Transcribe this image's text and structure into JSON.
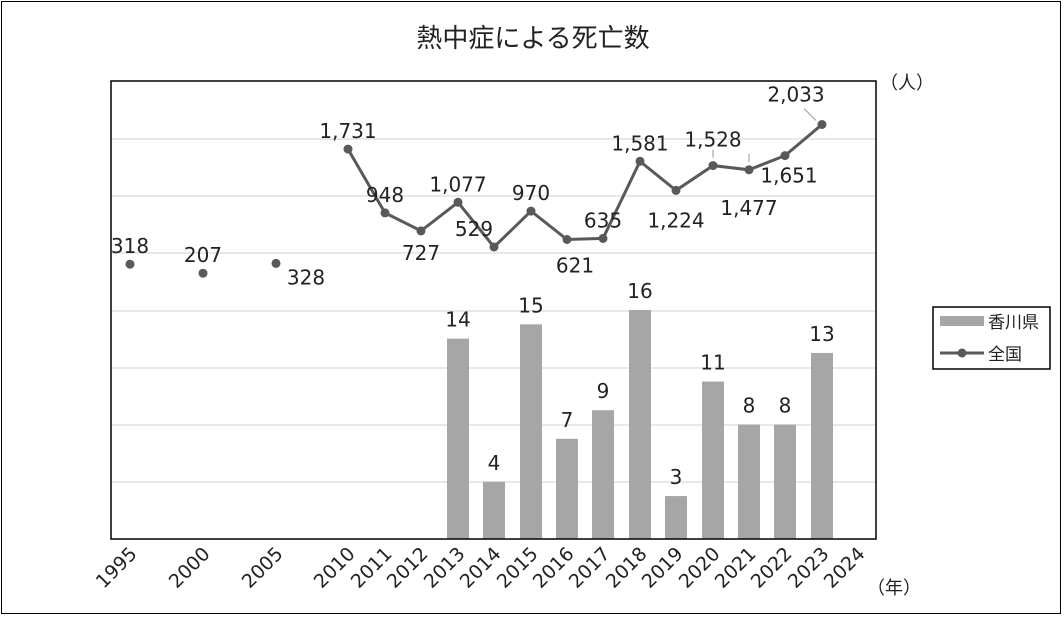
{
  "chart_data": {
    "type": "bar",
    "title": "熱中症による死亡数",
    "y_unit_label": "（人）",
    "x_unit_label": "（年）",
    "categories": [
      "1995",
      "2000",
      "2005",
      "2010",
      "2011",
      "2012",
      "2013",
      "2014",
      "2015",
      "2016",
      "2017",
      "2018",
      "2019",
      "2020",
      "2021",
      "2022",
      "2023",
      "2024"
    ],
    "series": [
      {
        "name": "香川県",
        "kind": "bar",
        "color": "#a6a6a6",
        "values": [
          null,
          null,
          null,
          null,
          null,
          null,
          14,
          4,
          15,
          7,
          9,
          16,
          3,
          11,
          8,
          8,
          13,
          null
        ]
      },
      {
        "name": "全国",
        "kind": "line",
        "color": "#595959",
        "values": [
          318,
          207,
          328,
          1731,
          948,
          727,
          1077,
          529,
          970,
          621,
          635,
          1581,
          1224,
          1528,
          1477,
          1651,
          2033,
          null
        ],
        "value_labels": [
          "318",
          "207",
          "328",
          "1,731",
          "948",
          "727",
          "1,077",
          "529",
          "970",
          "621",
          "635",
          "1,581",
          "1,224",
          "1,528",
          "1,477",
          "1,651",
          "2,033"
        ]
      }
    ],
    "grid": true,
    "legend_position": "right"
  }
}
